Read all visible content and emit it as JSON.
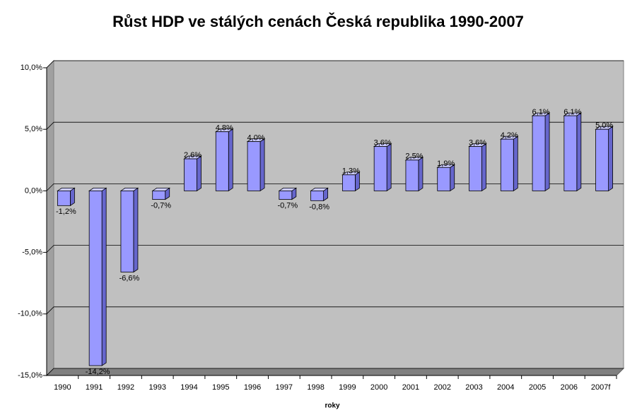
{
  "chart_data": {
    "type": "bar3d",
    "title": "Růst HDP ve stálých cenách Česká republika 1990-2007",
    "x_label": "roky",
    "categories": [
      "1990",
      "1991",
      "1992",
      "1993",
      "1994",
      "1995",
      "1996",
      "1997",
      "1998",
      "1999",
      "2000",
      "2001",
      "2002",
      "2003",
      "2004",
      "2005",
      "2006",
      "2007f"
    ],
    "values": [
      -1.2,
      -14.2,
      -6.6,
      -0.7,
      2.6,
      4.8,
      4.0,
      -0.7,
      -0.8,
      1.3,
      3.6,
      2.5,
      1.9,
      3.6,
      4.2,
      6.1,
      6.1,
      5.0
    ],
    "value_labels": [
      "-1,2%",
      "-14,2%",
      "-6,6%",
      "-0,7%",
      "2,6%",
      "4,8%",
      "4,0%",
      "-0,7%",
      "-0,8%",
      "1,3%",
      "3,6%",
      "2,5%",
      "1,9%",
      "3,6%",
      "4,2%",
      "6,1%",
      "6,1%",
      "5,0%"
    ],
    "color": "#9999ff",
    "ylim": [
      -15,
      10
    ],
    "yticks": [
      {
        "value": -15,
        "label": "-15,0%"
      },
      {
        "value": -10,
        "label": "-10,0%"
      },
      {
        "value": -5,
        "label": "-5,0%"
      },
      {
        "value": 0,
        "label": "0,0%"
      },
      {
        "value": 5,
        "label": "5,0%"
      },
      {
        "value": 10,
        "label": "10,0%"
      }
    ],
    "grid": true
  }
}
